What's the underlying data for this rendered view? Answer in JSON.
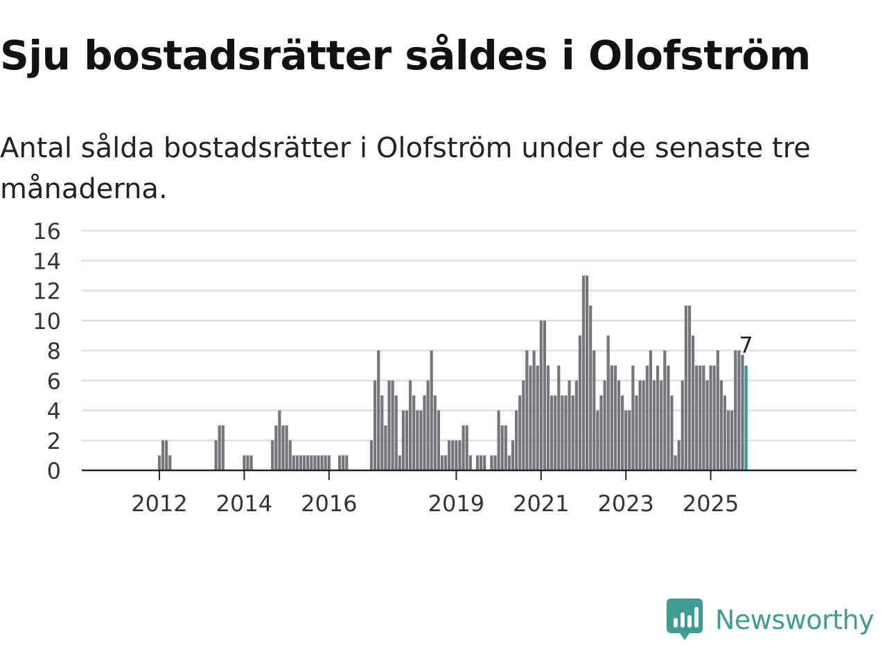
{
  "title": "Sju bostadsrätter såldes i Olofström",
  "subtitle": "Antal sålda bostadsrätter i Olofström under de senaste tre månaderna.",
  "brand": {
    "name": "Newsworthy",
    "icon": "newsworthy-chart-bubble-icon",
    "color": "#3f9c93"
  },
  "colors": {
    "bar": "#77757c",
    "highlight": "#2a9d94",
    "grid": "#dddddd",
    "axis": "#222222"
  },
  "chart_data": {
    "type": "bar",
    "title": "Sju bostadsrätter såldes i Olofström",
    "subtitle": "Antal sålda bostadsrätter i Olofström under de senaste tre månaderna.",
    "xlabel": "",
    "ylabel": "",
    "ylim": [
      0,
      16
    ],
    "yticks": [
      0,
      2,
      4,
      6,
      8,
      10,
      12,
      14,
      16
    ],
    "xtick_labels": [
      "2012",
      "2014",
      "2016",
      "2019",
      "2021",
      "2023",
      "2025"
    ],
    "grid": true,
    "start": "2011-03",
    "frequency": "monthly",
    "values": [
      0,
      0,
      0,
      0,
      0,
      0,
      0,
      0,
      0,
      0,
      1,
      2,
      2,
      1,
      0,
      0,
      0,
      0,
      0,
      0,
      0,
      0,
      0,
      0,
      0,
      0,
      2,
      3,
      3,
      0,
      0,
      0,
      0,
      0,
      1,
      1,
      1,
      0,
      0,
      0,
      0,
      0,
      2,
      3,
      4,
      3,
      3,
      2,
      1,
      1,
      1,
      1,
      1,
      1,
      1,
      1,
      1,
      1,
      1,
      0,
      0,
      1,
      1,
      1,
      0,
      0,
      0,
      0,
      0,
      0,
      2,
      6,
      8,
      5,
      3,
      6,
      6,
      5,
      1,
      4,
      4,
      6,
      5,
      4,
      4,
      5,
      6,
      8,
      5,
      4,
      1,
      1,
      2,
      2,
      2,
      2,
      3,
      3,
      1,
      0,
      1,
      1,
      1,
      0,
      1,
      1,
      4,
      3,
      3,
      1,
      2,
      4,
      5,
      6,
      8,
      7,
      8,
      7,
      10,
      10,
      7,
      5,
      5,
      7,
      5,
      5,
      6,
      5,
      6,
      9,
      13,
      13,
      11,
      8,
      4,
      5,
      6,
      9,
      7,
      7,
      6,
      5,
      4,
      4,
      7,
      5,
      6,
      6,
      7,
      8,
      6,
      7,
      6,
      8,
      7,
      5,
      1,
      2,
      6,
      11,
      11,
      9,
      7,
      7,
      7,
      6,
      7,
      7,
      8,
      6,
      5,
      4,
      4,
      8,
      8,
      8,
      7
    ],
    "highlight_label": "7"
  }
}
